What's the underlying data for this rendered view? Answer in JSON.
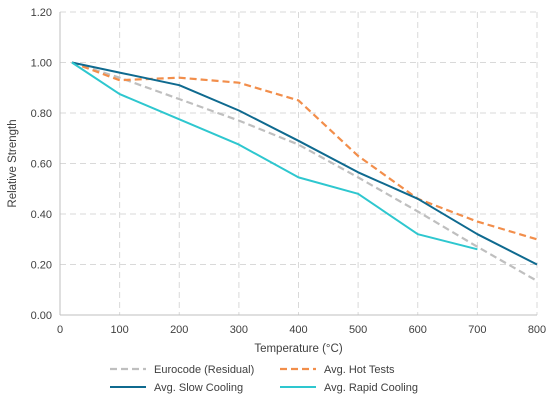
{
  "chart_data": {
    "type": "line",
    "title": "",
    "xlabel": "Temperature (°C)",
    "ylabel": "Relative Strength",
    "xlim": [
      0,
      800
    ],
    "ylim": [
      0,
      1.2
    ],
    "x_ticks": [
      0,
      100,
      200,
      300,
      400,
      500,
      600,
      700,
      800
    ],
    "y_ticks": [
      "0.00",
      "0.20",
      "0.40",
      "0.60",
      "0.80",
      "1.00",
      "1.20"
    ],
    "grid": true,
    "legend_position": "bottom",
    "series": [
      {
        "name": "Eurocode (Residual)",
        "color": "#bfbfbf",
        "dash": "dashed",
        "x": [
          20,
          100,
          200,
          300,
          400,
          500,
          600,
          700,
          800
        ],
        "y": [
          1.0,
          0.94,
          0.855,
          0.77,
          0.675,
          0.545,
          0.41,
          0.27,
          0.135
        ]
      },
      {
        "name": "Avg. Hot Tests",
        "color": "#f28e4b",
        "dash": "dashed",
        "x": [
          20,
          100,
          200,
          300,
          400,
          500,
          600,
          700,
          800
        ],
        "y": [
          1.0,
          0.93,
          0.94,
          0.92,
          0.85,
          0.63,
          0.46,
          0.37,
          0.3
        ]
      },
      {
        "name": "Avg. Slow Cooling",
        "color": "#0f6a8f",
        "dash": "solid",
        "x": [
          20,
          100,
          200,
          300,
          400,
          500,
          600,
          700,
          800
        ],
        "y": [
          1.0,
          0.96,
          0.91,
          0.81,
          0.69,
          0.565,
          0.46,
          0.32,
          0.2
        ]
      },
      {
        "name": "Avg. Rapid Cooling",
        "color": "#2ec7cf",
        "dash": "solid",
        "x": [
          20,
          100,
          200,
          300,
          400,
          500,
          600,
          700
        ],
        "y": [
          1.0,
          0.875,
          0.775,
          0.675,
          0.545,
          0.48,
          0.32,
          0.26
        ]
      }
    ]
  }
}
